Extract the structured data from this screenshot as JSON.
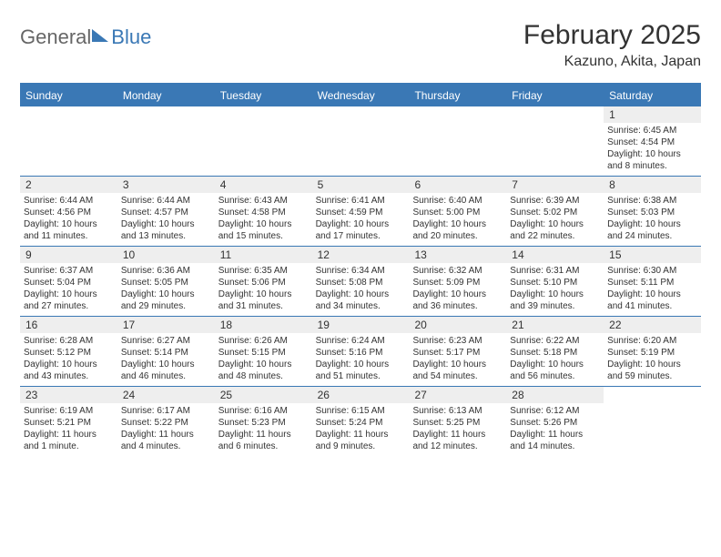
{
  "logo": {
    "part1": "General",
    "part2": "Blue"
  },
  "title": "February 2025",
  "location": "Kazuno, Akita, Japan",
  "colors": {
    "accent": "#3a78b5",
    "header_bg": "#3a78b5",
    "daynum_bg": "#eeeeee",
    "text": "#333333",
    "logo_gray": "#666666"
  },
  "day_names": [
    "Sunday",
    "Monday",
    "Tuesday",
    "Wednesday",
    "Thursday",
    "Friday",
    "Saturday"
  ],
  "weeks": [
    [
      {
        "n": "",
        "sr": "",
        "ss": "",
        "dl": ""
      },
      {
        "n": "",
        "sr": "",
        "ss": "",
        "dl": ""
      },
      {
        "n": "",
        "sr": "",
        "ss": "",
        "dl": ""
      },
      {
        "n": "",
        "sr": "",
        "ss": "",
        "dl": ""
      },
      {
        "n": "",
        "sr": "",
        "ss": "",
        "dl": ""
      },
      {
        "n": "",
        "sr": "",
        "ss": "",
        "dl": ""
      },
      {
        "n": "1",
        "sr": "Sunrise: 6:45 AM",
        "ss": "Sunset: 4:54 PM",
        "dl": "Daylight: 10 hours and 8 minutes."
      }
    ],
    [
      {
        "n": "2",
        "sr": "Sunrise: 6:44 AM",
        "ss": "Sunset: 4:56 PM",
        "dl": "Daylight: 10 hours and 11 minutes."
      },
      {
        "n": "3",
        "sr": "Sunrise: 6:44 AM",
        "ss": "Sunset: 4:57 PM",
        "dl": "Daylight: 10 hours and 13 minutes."
      },
      {
        "n": "4",
        "sr": "Sunrise: 6:43 AM",
        "ss": "Sunset: 4:58 PM",
        "dl": "Daylight: 10 hours and 15 minutes."
      },
      {
        "n": "5",
        "sr": "Sunrise: 6:41 AM",
        "ss": "Sunset: 4:59 PM",
        "dl": "Daylight: 10 hours and 17 minutes."
      },
      {
        "n": "6",
        "sr": "Sunrise: 6:40 AM",
        "ss": "Sunset: 5:00 PM",
        "dl": "Daylight: 10 hours and 20 minutes."
      },
      {
        "n": "7",
        "sr": "Sunrise: 6:39 AM",
        "ss": "Sunset: 5:02 PM",
        "dl": "Daylight: 10 hours and 22 minutes."
      },
      {
        "n": "8",
        "sr": "Sunrise: 6:38 AM",
        "ss": "Sunset: 5:03 PM",
        "dl": "Daylight: 10 hours and 24 minutes."
      }
    ],
    [
      {
        "n": "9",
        "sr": "Sunrise: 6:37 AM",
        "ss": "Sunset: 5:04 PM",
        "dl": "Daylight: 10 hours and 27 minutes."
      },
      {
        "n": "10",
        "sr": "Sunrise: 6:36 AM",
        "ss": "Sunset: 5:05 PM",
        "dl": "Daylight: 10 hours and 29 minutes."
      },
      {
        "n": "11",
        "sr": "Sunrise: 6:35 AM",
        "ss": "Sunset: 5:06 PM",
        "dl": "Daylight: 10 hours and 31 minutes."
      },
      {
        "n": "12",
        "sr": "Sunrise: 6:34 AM",
        "ss": "Sunset: 5:08 PM",
        "dl": "Daylight: 10 hours and 34 minutes."
      },
      {
        "n": "13",
        "sr": "Sunrise: 6:32 AM",
        "ss": "Sunset: 5:09 PM",
        "dl": "Daylight: 10 hours and 36 minutes."
      },
      {
        "n": "14",
        "sr": "Sunrise: 6:31 AM",
        "ss": "Sunset: 5:10 PM",
        "dl": "Daylight: 10 hours and 39 minutes."
      },
      {
        "n": "15",
        "sr": "Sunrise: 6:30 AM",
        "ss": "Sunset: 5:11 PM",
        "dl": "Daylight: 10 hours and 41 minutes."
      }
    ],
    [
      {
        "n": "16",
        "sr": "Sunrise: 6:28 AM",
        "ss": "Sunset: 5:12 PM",
        "dl": "Daylight: 10 hours and 43 minutes."
      },
      {
        "n": "17",
        "sr": "Sunrise: 6:27 AM",
        "ss": "Sunset: 5:14 PM",
        "dl": "Daylight: 10 hours and 46 minutes."
      },
      {
        "n": "18",
        "sr": "Sunrise: 6:26 AM",
        "ss": "Sunset: 5:15 PM",
        "dl": "Daylight: 10 hours and 48 minutes."
      },
      {
        "n": "19",
        "sr": "Sunrise: 6:24 AM",
        "ss": "Sunset: 5:16 PM",
        "dl": "Daylight: 10 hours and 51 minutes."
      },
      {
        "n": "20",
        "sr": "Sunrise: 6:23 AM",
        "ss": "Sunset: 5:17 PM",
        "dl": "Daylight: 10 hours and 54 minutes."
      },
      {
        "n": "21",
        "sr": "Sunrise: 6:22 AM",
        "ss": "Sunset: 5:18 PM",
        "dl": "Daylight: 10 hours and 56 minutes."
      },
      {
        "n": "22",
        "sr": "Sunrise: 6:20 AM",
        "ss": "Sunset: 5:19 PM",
        "dl": "Daylight: 10 hours and 59 minutes."
      }
    ],
    [
      {
        "n": "23",
        "sr": "Sunrise: 6:19 AM",
        "ss": "Sunset: 5:21 PM",
        "dl": "Daylight: 11 hours and 1 minute."
      },
      {
        "n": "24",
        "sr": "Sunrise: 6:17 AM",
        "ss": "Sunset: 5:22 PM",
        "dl": "Daylight: 11 hours and 4 minutes."
      },
      {
        "n": "25",
        "sr": "Sunrise: 6:16 AM",
        "ss": "Sunset: 5:23 PM",
        "dl": "Daylight: 11 hours and 6 minutes."
      },
      {
        "n": "26",
        "sr": "Sunrise: 6:15 AM",
        "ss": "Sunset: 5:24 PM",
        "dl": "Daylight: 11 hours and 9 minutes."
      },
      {
        "n": "27",
        "sr": "Sunrise: 6:13 AM",
        "ss": "Sunset: 5:25 PM",
        "dl": "Daylight: 11 hours and 12 minutes."
      },
      {
        "n": "28",
        "sr": "Sunrise: 6:12 AM",
        "ss": "Sunset: 5:26 PM",
        "dl": "Daylight: 11 hours and 14 minutes."
      },
      {
        "n": "",
        "sr": "",
        "ss": "",
        "dl": ""
      }
    ]
  ]
}
